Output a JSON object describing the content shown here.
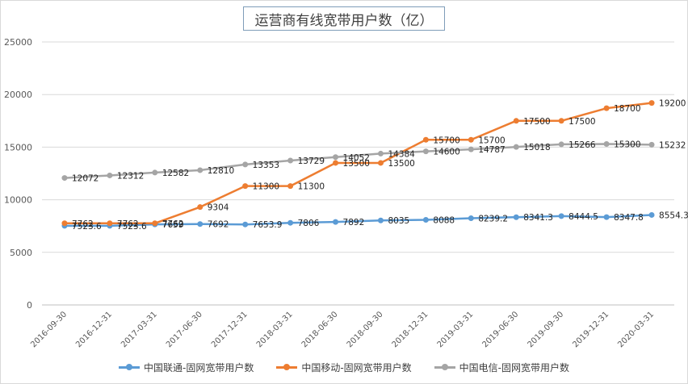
{
  "chart_data": {
    "type": "line",
    "title": "运营商有线宽带用户数（亿）",
    "categories": [
      "2016-09-30",
      "2016-12-31",
      "2017-03-31",
      "2017-06-30",
      "2017-12-31",
      "2018-03-31",
      "2018-06-30",
      "2018-09-30",
      "2018-12-31",
      "2019-03-31",
      "2019-06-30",
      "2019-09-30",
      "2019-12-31",
      "2020-03-31"
    ],
    "ylim": [
      0,
      25000
    ],
    "yticks": [
      "0",
      "5000",
      "10000",
      "15000",
      "20000",
      "25000"
    ],
    "grid": true,
    "legend_position": "bottom",
    "series": [
      {
        "name": "中国联通-固网宽带用户数",
        "color": "#5b9bd5",
        "values": [
          7523.6,
          7523.6,
          7659,
          7692,
          7653.9,
          7806,
          7892,
          8035,
          8088,
          8239.2,
          8341.3,
          8444.5,
          8347.8,
          8554.3
        ],
        "labels": [
          "7523.6",
          "7523.6",
          "7659",
          "7692",
          "7653.9",
          "7806",
          "7892",
          "8035",
          "8088",
          "8239.2",
          "8341.3",
          "8444.5",
          "8347.8",
          "8554.3"
        ]
      },
      {
        "name": "中国移动-固网宽带用户数",
        "color": "#ed7d31",
        "values": [
          7762,
          7762,
          7762,
          9304,
          11300,
          11300,
          13500,
          13500,
          15700,
          15700,
          17500,
          17500,
          18700,
          19200
        ],
        "labels": [
          "7762",
          "7762",
          "7762",
          "9304",
          "11300",
          "11300",
          "13500",
          "13500",
          "15700",
          "15700",
          "17500",
          "17500",
          "18700",
          "19200"
        ]
      },
      {
        "name": "中国电信-固网宽带用户数",
        "color": "#a5a5a5",
        "values": [
          12072,
          12312,
          12582,
          12810,
          13353,
          13729,
          14052,
          14384,
          14600,
          14787,
          15018,
          15266,
          15300,
          15232
        ],
        "labels": [
          "12072",
          "12312",
          "12582",
          "12810",
          "13353",
          "13729",
          "14052",
          "14384",
          "14600",
          "14787",
          "15018",
          "15266",
          "15300",
          "15232"
        ]
      }
    ]
  }
}
